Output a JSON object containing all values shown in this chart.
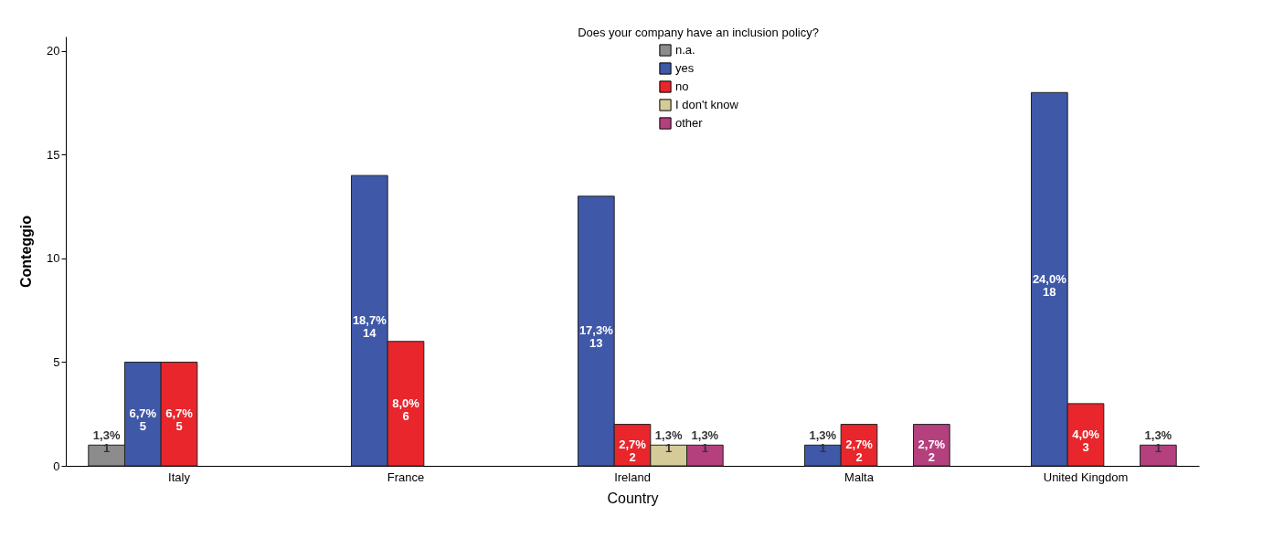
{
  "chart_data": {
    "type": "bar",
    "legend_title": "Does your company have an inclusion policy?",
    "xlabel": "Country",
    "ylabel": "Conteggio",
    "categories": [
      "Italy",
      "France",
      "Ireland",
      "Malta",
      "United Kingdom"
    ],
    "series": [
      {
        "name": "n.a.",
        "color": "#8c8c8c",
        "values": [
          1,
          null,
          null,
          null,
          null
        ],
        "value_labels": [
          "1,3%\n1",
          null,
          null,
          null,
          null
        ]
      },
      {
        "name": "yes",
        "color": "#3f58a8",
        "values": [
          5,
          14,
          13,
          1,
          18
        ],
        "value_labels": [
          "6,7%\n5",
          "18,7%\n14",
          "17,3%\n13",
          "1,3%\n1",
          "24,0%\n18"
        ]
      },
      {
        "name": "no",
        "color": "#e8262b",
        "values": [
          5,
          6,
          2,
          2,
          3
        ],
        "value_labels": [
          "6,7%\n5",
          "8,0%\n6",
          "2,7%\n2",
          "2,7%\n2",
          "4,0%\n3"
        ]
      },
      {
        "name": "I don't know",
        "color": "#d4cb98",
        "values": [
          null,
          null,
          1,
          null,
          null
        ],
        "value_labels": [
          null,
          null,
          "1,3%\n1",
          null,
          null
        ]
      },
      {
        "name": "other",
        "color": "#b5407e",
        "values": [
          null,
          null,
          1,
          2,
          1
        ],
        "value_labels": [
          null,
          null,
          "1,3%\n1",
          "2,7%\n2",
          "1,3%\n1"
        ]
      }
    ],
    "ylim": [
      0,
      20.7
    ],
    "yticks": [
      0,
      5,
      10,
      15,
      20
    ],
    "grid": false,
    "legend": "top"
  }
}
